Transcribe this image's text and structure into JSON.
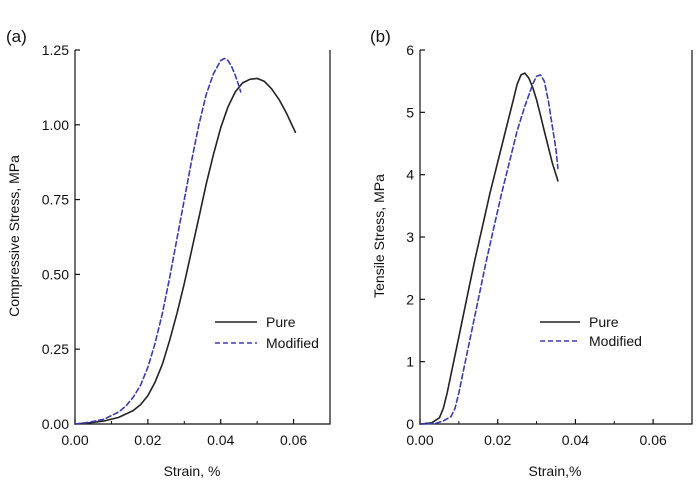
{
  "chart_data": [
    {
      "panel": "(a)",
      "type": "line",
      "xlabel": "Strain, %",
      "ylabel": "Compressive Stress, MPa",
      "xlim": [
        0,
        0.07
      ],
      "ylim": [
        0,
        1.25
      ],
      "xticks": [
        "0.00",
        "0.02",
        "0.04",
        "0.06"
      ],
      "yticks": [
        "0.00",
        "0.25",
        "0.50",
        "0.75",
        "1.00",
        "1.25"
      ],
      "legend_position": "lower-right",
      "series": [
        {
          "name": "Pure",
          "style": "solid",
          "color": "#222222",
          "points": [
            [
              0,
              0
            ],
            [
              0.004,
              0.004
            ],
            [
              0.008,
              0.01
            ],
            [
              0.012,
              0.022
            ],
            [
              0.016,
              0.045
            ],
            [
              0.018,
              0.065
            ],
            [
              0.02,
              0.095
            ],
            [
              0.022,
              0.14
            ],
            [
              0.024,
              0.2
            ],
            [
              0.026,
              0.28
            ],
            [
              0.028,
              0.37
            ],
            [
              0.03,
              0.47
            ],
            [
              0.032,
              0.58
            ],
            [
              0.034,
              0.69
            ],
            [
              0.036,
              0.8
            ],
            [
              0.038,
              0.9
            ],
            [
              0.04,
              0.99
            ],
            [
              0.042,
              1.06
            ],
            [
              0.044,
              1.11
            ],
            [
              0.046,
              1.14
            ],
            [
              0.048,
              1.152
            ],
            [
              0.05,
              1.155
            ],
            [
              0.052,
              1.145
            ],
            [
              0.054,
              1.12
            ],
            [
              0.056,
              1.085
            ],
            [
              0.058,
              1.04
            ],
            [
              0.0605,
              0.975
            ]
          ]
        },
        {
          "name": "Modified",
          "style": "dashed",
          "color": "#3b3bb0",
          "points": [
            [
              0,
              0
            ],
            [
              0.004,
              0.006
            ],
            [
              0.008,
              0.016
            ],
            [
              0.012,
              0.04
            ],
            [
              0.014,
              0.06
            ],
            [
              0.016,
              0.09
            ],
            [
              0.018,
              0.13
            ],
            [
              0.02,
              0.19
            ],
            [
              0.022,
              0.27
            ],
            [
              0.024,
              0.37
            ],
            [
              0.026,
              0.49
            ],
            [
              0.028,
              0.62
            ],
            [
              0.03,
              0.75
            ],
            [
              0.032,
              0.88
            ],
            [
              0.034,
              1.0
            ],
            [
              0.036,
              1.1
            ],
            [
              0.038,
              1.17
            ],
            [
              0.04,
              1.215
            ],
            [
              0.041,
              1.222
            ],
            [
              0.042,
              1.215
            ],
            [
              0.043,
              1.195
            ],
            [
              0.044,
              1.165
            ],
            [
              0.045,
              1.13
            ],
            [
              0.0455,
              1.11
            ]
          ]
        }
      ]
    },
    {
      "panel": "(b)",
      "type": "line",
      "xlabel": "Strain,%",
      "ylabel": "Tensile Stress, MPa",
      "xlim": [
        0,
        0.07
      ],
      "ylim": [
        0,
        6
      ],
      "xticks": [
        "0.00",
        "0.02",
        "0.04",
        "0.06"
      ],
      "yticks": [
        "0",
        "1",
        "2",
        "3",
        "4",
        "5",
        "6"
      ],
      "legend_position": "lower-right",
      "series": [
        {
          "name": "Pure",
          "style": "solid",
          "color": "#222222",
          "points": [
            [
              0,
              0
            ],
            [
              0.003,
              0.02
            ],
            [
              0.005,
              0.1
            ],
            [
              0.006,
              0.25
            ],
            [
              0.007,
              0.5
            ],
            [
              0.008,
              0.8
            ],
            [
              0.01,
              1.4
            ],
            [
              0.012,
              2.0
            ],
            [
              0.014,
              2.6
            ],
            [
              0.016,
              3.15
            ],
            [
              0.018,
              3.7
            ],
            [
              0.02,
              4.2
            ],
            [
              0.022,
              4.7
            ],
            [
              0.024,
              5.2
            ],
            [
              0.025,
              5.45
            ],
            [
              0.026,
              5.6
            ],
            [
              0.027,
              5.63
            ],
            [
              0.028,
              5.55
            ],
            [
              0.029,
              5.4
            ],
            [
              0.03,
              5.2
            ],
            [
              0.031,
              4.95
            ],
            [
              0.032,
              4.7
            ],
            [
              0.033,
              4.45
            ],
            [
              0.034,
              4.2
            ],
            [
              0.035,
              4.0
            ],
            [
              0.0355,
              3.9
            ]
          ]
        },
        {
          "name": "Modified",
          "style": "dashed",
          "color": "#3b3bb0",
          "points": [
            [
              0,
              0
            ],
            [
              0.004,
              0.01
            ],
            [
              0.006,
              0.05
            ],
            [
              0.008,
              0.12
            ],
            [
              0.009,
              0.25
            ],
            [
              0.01,
              0.5
            ],
            [
              0.011,
              0.8
            ],
            [
              0.013,
              1.4
            ],
            [
              0.015,
              2.0
            ],
            [
              0.017,
              2.6
            ],
            [
              0.019,
              3.15
            ],
            [
              0.021,
              3.7
            ],
            [
              0.023,
              4.2
            ],
            [
              0.025,
              4.7
            ],
            [
              0.027,
              5.1
            ],
            [
              0.029,
              5.45
            ],
            [
              0.03,
              5.58
            ],
            [
              0.031,
              5.6
            ],
            [
              0.032,
              5.5
            ],
            [
              0.033,
              5.2
            ],
            [
              0.034,
              4.8
            ],
            [
              0.035,
              4.4
            ],
            [
              0.0355,
              4.1
            ]
          ]
        }
      ]
    }
  ]
}
